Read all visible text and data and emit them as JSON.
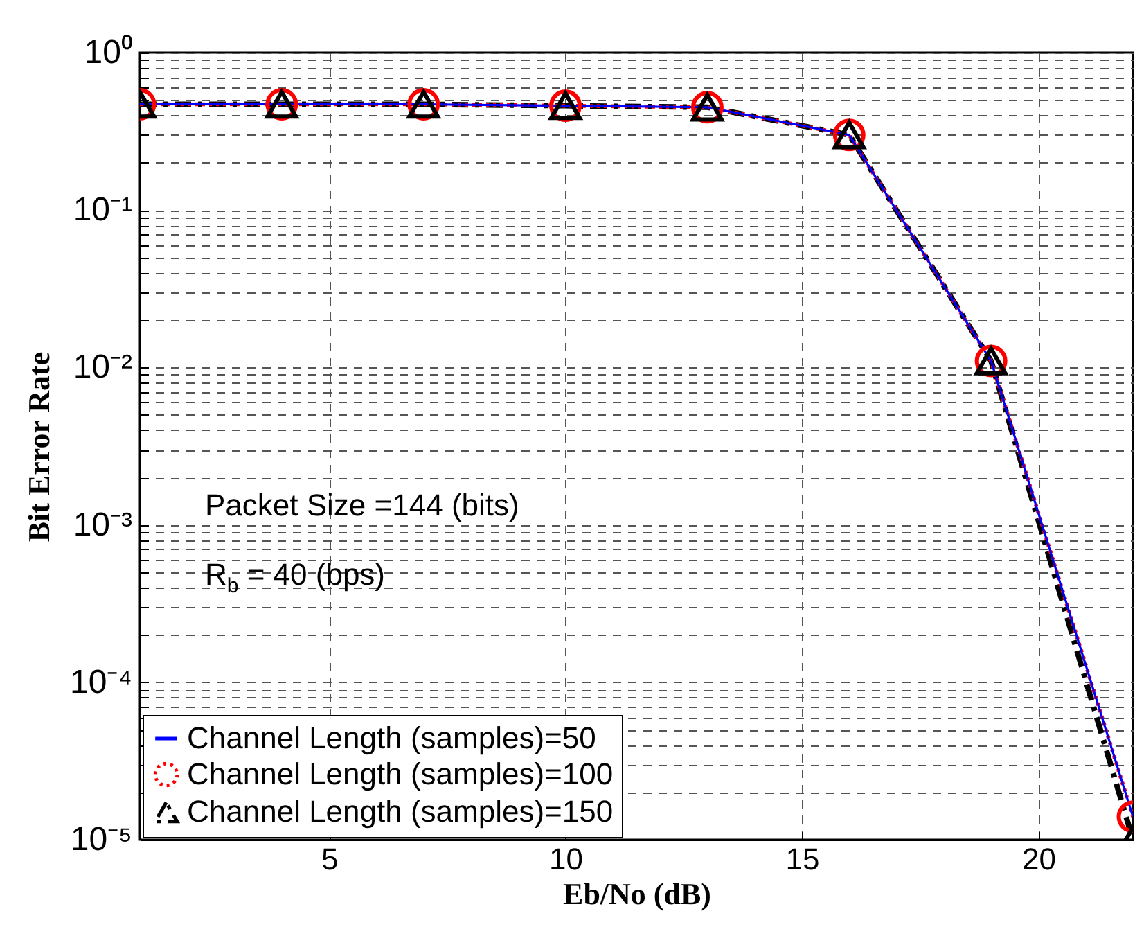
{
  "chart_data": {
    "type": "line",
    "xlabel": "Eb/No (dB)",
    "ylabel": "Bit Error Rate",
    "x": [
      1,
      4,
      7,
      10,
      13,
      16,
      19,
      22
    ],
    "xlim": [
      1,
      22
    ],
    "xticks": [
      5,
      10,
      15,
      20
    ],
    "ylim": [
      1e-05,
      1
    ],
    "log": "y",
    "grid": true,
    "legend": "bottom left",
    "yticks": [
      {
        "value": 1e-05,
        "label": "10⁻⁵"
      },
      {
        "value": 2e-05,
        "label": null
      },
      {
        "value": 3e-05,
        "label": null
      },
      {
        "value": 4e-05,
        "label": null
      },
      {
        "value": 5e-05,
        "label": null
      },
      {
        "value": 6e-05,
        "label": null
      },
      {
        "value": 7e-05,
        "label": null
      },
      {
        "value": 8e-05,
        "label": null
      },
      {
        "value": 9e-05,
        "label": null
      },
      {
        "value": 0.0001,
        "label": "10⁻⁴"
      },
      {
        "value": 0.0002,
        "label": null
      },
      {
        "value": 0.0003,
        "label": null
      },
      {
        "value": 0.0004,
        "label": null
      },
      {
        "value": 0.0005,
        "label": null
      },
      {
        "value": 0.0006,
        "label": null
      },
      {
        "value": 0.0007,
        "label": null
      },
      {
        "value": 0.0008,
        "label": null
      },
      {
        "value": 0.0009,
        "label": null
      },
      {
        "value": 0.001,
        "label": "10⁻³"
      },
      {
        "value": 0.002,
        "label": null
      },
      {
        "value": 0.003,
        "label": null
      },
      {
        "value": 0.004,
        "label": null
      },
      {
        "value": 0.005,
        "label": null
      },
      {
        "value": 0.006,
        "label": null
      },
      {
        "value": 0.007,
        "label": null
      },
      {
        "value": 0.008,
        "label": null
      },
      {
        "value": 0.009,
        "label": null
      },
      {
        "value": 0.01,
        "label": "10⁻²"
      },
      {
        "value": 0.02,
        "label": null
      },
      {
        "value": 0.03,
        "label": null
      },
      {
        "value": 0.04,
        "label": null
      },
      {
        "value": 0.05,
        "label": null
      },
      {
        "value": 0.06,
        "label": null
      },
      {
        "value": 0.07,
        "label": null
      },
      {
        "value": 0.08,
        "label": null
      },
      {
        "value": 0.09,
        "label": null
      },
      {
        "value": 0.1,
        "label": "10⁻¹"
      },
      {
        "value": 0.2,
        "label": null
      },
      {
        "value": 0.3,
        "label": null
      },
      {
        "value": 0.4,
        "label": null
      },
      {
        "value": 0.5,
        "label": null
      },
      {
        "value": 0.6,
        "label": null
      },
      {
        "value": 0.7,
        "label": null
      },
      {
        "value": 0.8,
        "label": null
      },
      {
        "value": 0.9,
        "label": null
      },
      {
        "value": 1,
        "label": "10⁰"
      }
    ],
    "annotations": [
      "Packet Size =144 (bits)",
      "R$_{b}$ = 40 (bps)"
    ],
    "series": [
      {
        "name": "Channel Length (samples)=50",
        "color": "#0000ff",
        "marker": "none",
        "line_style": "solid",
        "values": [
          0.47,
          0.47,
          0.47,
          0.46,
          0.45,
          0.3,
          0.011,
          1.4e-05
        ]
      },
      {
        "name": "Channel Length (samples)=100",
        "color": "#ff0000",
        "marker": "circle",
        "line_style": "dotted",
        "values": [
          0.47,
          0.47,
          0.47,
          0.46,
          0.45,
          0.3,
          0.011,
          1.4e-05
        ]
      },
      {
        "name": "Channel Length (samples)=150",
        "color": "#000000",
        "marker": "triangle",
        "line_style": "dashed",
        "values": [
          0.47,
          0.47,
          0.47,
          0.46,
          0.45,
          0.3,
          0.011,
          1e-05
        ]
      }
    ]
  }
}
